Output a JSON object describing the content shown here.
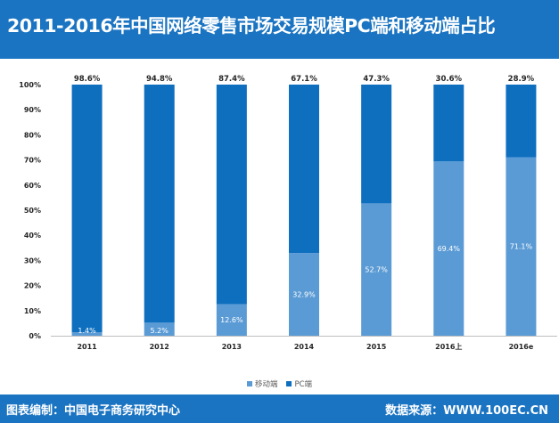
{
  "title": "2011-2016年中国网络零售市场交易规模PC端和移动端占比",
  "footer": {
    "left": "图表编制：中国电子商务研究中心",
    "right": "数据来源：WWW.100EC.CN"
  },
  "colors": {
    "header": "#1a74c2",
    "pc": "#0e6fbf",
    "mobile": "#5b9bd5"
  },
  "chart_data": {
    "type": "bar",
    "stacked": true,
    "categories": [
      "2011",
      "2012",
      "2013",
      "2014",
      "2015",
      "2016上",
      "2016e"
    ],
    "series": [
      {
        "name": "移动端",
        "values": [
          1.4,
          5.2,
          12.6,
          32.9,
          52.7,
          69.4,
          71.1
        ],
        "labels": [
          "1.4%",
          "5.2%",
          "12.6%",
          "32.9%",
          "52.7%",
          "69.4%",
          "71.1%"
        ],
        "color": "#5b9bd5"
      },
      {
        "name": "PC端",
        "values": [
          98.6,
          94.8,
          87.4,
          67.1,
          47.3,
          30.6,
          28.9
        ],
        "labels": [
          "98.6%",
          "94.8%",
          "87.4%",
          "67.1%",
          "47.3%",
          "30.6%",
          "28.9%"
        ],
        "color": "#0e6fbf"
      }
    ],
    "ylim": [
      0,
      100
    ],
    "yticks": [
      "0%",
      "10%",
      "20%",
      "30%",
      "40%",
      "50%",
      "60%",
      "70%",
      "80%",
      "90%",
      "100%"
    ],
    "grid": false,
    "legend": "bottom"
  }
}
